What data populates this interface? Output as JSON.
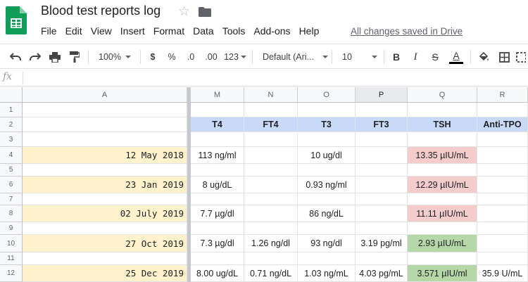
{
  "app": {
    "doc_title": "Blood test reports log",
    "save_status": "All changes saved in Drive",
    "menu": [
      "File",
      "Edit",
      "View",
      "Insert",
      "Format",
      "Data",
      "Tools",
      "Add-ons",
      "Help"
    ]
  },
  "toolbar": {
    "zoom": "100%",
    "currency": "$",
    "percent": "%",
    "decrease_decimal": ".0",
    "increase_decimal": ".00",
    "more_formats": "123",
    "font": "Default (Ari...",
    "font_size": "10",
    "bold": "B",
    "italic": "I",
    "strikethrough": "S",
    "text_color": "A"
  },
  "formula_bar": {
    "fx": "fx",
    "content": ""
  },
  "colors": {
    "header_fill": "#c9daf8",
    "date_fill": "#fff2cc",
    "high_fill": "#f4cccc",
    "normal_fill": "#b6d7a8",
    "sheets_green": "#0f9d58"
  },
  "grid": {
    "columns": [
      "A",
      "M",
      "N",
      "O",
      "P",
      "Q",
      "R"
    ],
    "selected_column": "P",
    "row_numbers": [
      "1",
      "2",
      "3",
      "4",
      "5",
      "6",
      "7",
      "8",
      "9",
      "10",
      "11",
      "12"
    ],
    "headers": [
      "T4",
      "FT4",
      "T3",
      "FT3",
      "TSH",
      "Anti-TPO"
    ],
    "records": [
      {
        "date": "12 May 2018",
        "values": [
          "113 ng/ml",
          "",
          "10 ug/dl",
          "",
          "13.35 µIU/mL",
          ""
        ],
        "tsh_status": "high"
      },
      {
        "date": "23 Jan 2019",
        "values": [
          "8 ug/dL",
          "",
          "0.93 ng/ml",
          "",
          "12.29 µIU/mL",
          ""
        ],
        "tsh_status": "high"
      },
      {
        "date": "02 July 2019",
        "values": [
          "7.7 µg/dl",
          "",
          "86 ng/dL",
          "",
          "11.11 µIU/mL",
          ""
        ],
        "tsh_status": "high"
      },
      {
        "date": "27 Oct 2019",
        "values": [
          "7.3 µg/dl",
          "1.26 ng/dl",
          "93 ng/dl",
          "3.19 pg/ml",
          "2.93 µIU/mL",
          ""
        ],
        "tsh_status": "normal"
      },
      {
        "date": "25 Dec 2019",
        "values": [
          "8.00 ug/dL",
          "0.71 ng/dL",
          "1.03 ng/mL",
          "4.03 pg/mL",
          "3.571 µIU/ml",
          "35.9 U/mL"
        ],
        "tsh_status": "normal"
      }
    ]
  }
}
